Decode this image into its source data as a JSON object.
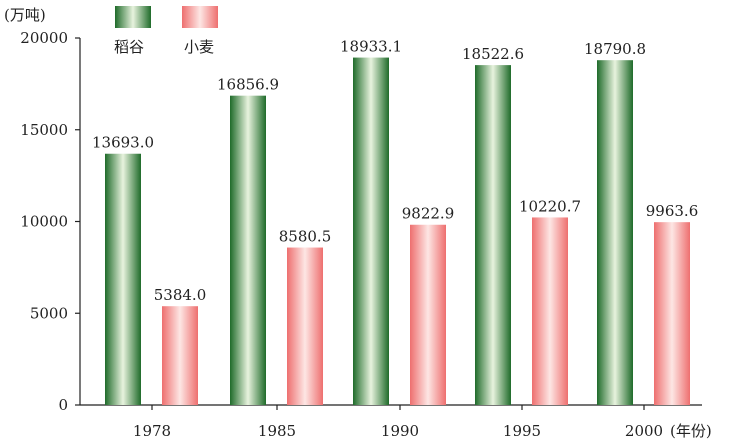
{
  "chart_data": {
    "type": "bar",
    "title": "",
    "xlabel": "",
    "ylabel": "",
    "y_unit": "(万吨)",
    "x_unit": "(年份)",
    "categories": [
      "1978",
      "1985",
      "1990",
      "1995",
      "2000"
    ],
    "series": [
      {
        "name": "稻谷",
        "values": [
          13693.0,
          16856.9,
          18933.1,
          18522.6,
          18790.8
        ],
        "labels": [
          "13693.0",
          "16856.9",
          "18933.1",
          "18522.6",
          "18790.8"
        ],
        "color": "#3e8a3e"
      },
      {
        "name": "小麦",
        "values": [
          5384.0,
          8580.5,
          9822.9,
          10220.7,
          9963.6
        ],
        "labels": [
          "5384.0",
          "8580.5",
          "9822.9",
          "10220.7",
          "9963.6"
        ],
        "color": "#f08a8a"
      }
    ],
    "ylim": [
      0,
      20000
    ],
    "yticks": [
      "0",
      "5000",
      "10000",
      "15000",
      "20000"
    ],
    "grid": false,
    "legend": "top-left"
  }
}
